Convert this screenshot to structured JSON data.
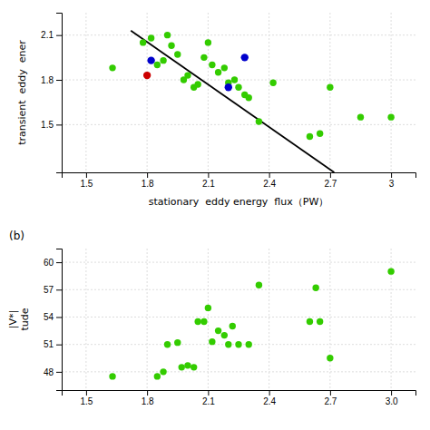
{
  "chart_data": [
    {
      "type": "scatter",
      "xlabel": "stationary  eddy energy  flux（PW）",
      "ylabel": "transient  eddy  ener",
      "xlim": [
        1.38,
        3.12
      ],
      "ylim": [
        1.18,
        2.25
      ],
      "xticks": [
        1.5,
        1.8,
        2.1,
        2.4,
        2.7,
        3
      ],
      "yticks": [
        1.5,
        1.8,
        2.1
      ],
      "grid": true,
      "series": [
        {
          "type": "scatter",
          "color": "#33cc00",
          "x": [
            1.63,
            1.78,
            1.82,
            1.85,
            1.88,
            1.9,
            1.92,
            1.95,
            1.98,
            2.0,
            2.03,
            2.05,
            2.08,
            2.1,
            2.12,
            2.15,
            2.18,
            2.2,
            2.23,
            2.25,
            2.28,
            2.3,
            2.35,
            2.42,
            2.6,
            2.65,
            2.7,
            2.85,
            3.0
          ],
          "values": [
            1.88,
            2.05,
            2.08,
            1.9,
            1.93,
            2.1,
            2.03,
            1.97,
            1.8,
            1.83,
            1.75,
            1.77,
            1.95,
            2.05,
            1.9,
            1.85,
            1.88,
            1.78,
            1.8,
            1.75,
            1.7,
            1.68,
            1.52,
            1.78,
            1.42,
            1.44,
            1.75,
            1.55,
            1.55
          ]
        },
        {
          "type": "scatter",
          "color": "#0000cc",
          "x": [
            1.82,
            2.28,
            2.2
          ],
          "values": [
            1.93,
            1.95,
            1.75
          ]
        },
        {
          "type": "scatter",
          "color": "#cc0000",
          "x": [
            1.8
          ],
          "values": [
            1.83
          ]
        },
        {
          "type": "line",
          "color": "#000000",
          "x": [
            1.72,
            2.72
          ],
          "values": [
            2.13,
            1.18
          ]
        }
      ]
    },
    {
      "type": "scatter",
      "title": "(b)",
      "ylabel": [
        "|V*|",
        "tude"
      ],
      "xlim": [
        1.38,
        3.12
      ],
      "ylim": [
        46.0,
        61.5
      ],
      "xticks": [
        1.5,
        1.8,
        2.1,
        2.4,
        2.7,
        {
          "value": 3.0,
          "label": "3.0"
        }
      ],
      "yticks": [
        48,
        51,
        54,
        57,
        60
      ],
      "grid": true,
      "series": [
        {
          "type": "scatter",
          "color": "#33cc00",
          "x": [
            1.63,
            1.85,
            1.88,
            1.9,
            1.95,
            1.97,
            2.0,
            2.03,
            2.05,
            2.08,
            2.1,
            2.12,
            2.15,
            2.18,
            2.2,
            2.22,
            2.25,
            2.3,
            2.35,
            2.6,
            2.63,
            2.65,
            2.7,
            3.0
          ],
          "values": [
            47.5,
            47.5,
            48.0,
            51.0,
            51.2,
            48.5,
            48.7,
            48.5,
            53.5,
            53.5,
            55.0,
            51.3,
            52.5,
            52.0,
            51.0,
            53.0,
            51.0,
            51.0,
            57.5,
            53.5,
            57.2,
            53.5,
            49.5,
            59.0
          ]
        }
      ]
    }
  ]
}
